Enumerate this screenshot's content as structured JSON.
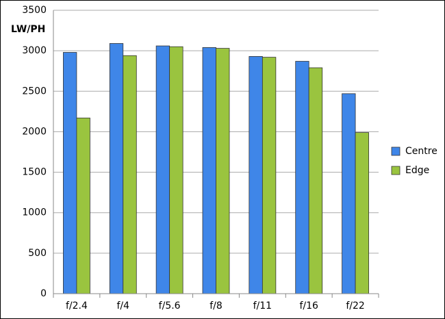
{
  "chart_data": {
    "type": "bar",
    "y_label": "LW/PH",
    "categories": [
      "f/2.4",
      "f/4",
      "f/5.6",
      "f/8",
      "f/11",
      "f/16",
      "f/22"
    ],
    "series": [
      {
        "name": "Centre",
        "color": "#3f86e8",
        "values": [
          2980,
          3090,
          3060,
          3040,
          2930,
          2870,
          2470
        ]
      },
      {
        "name": "Edge",
        "color": "#9ac43f",
        "values": [
          2170,
          2940,
          3050,
          3030,
          2920,
          2790,
          1990
        ]
      }
    ],
    "ylim": [
      0,
      3500
    ],
    "yticks": [
      0,
      500,
      1000,
      1500,
      2000,
      2500,
      3000,
      3500
    ],
    "grid": true,
    "legend": "right"
  }
}
